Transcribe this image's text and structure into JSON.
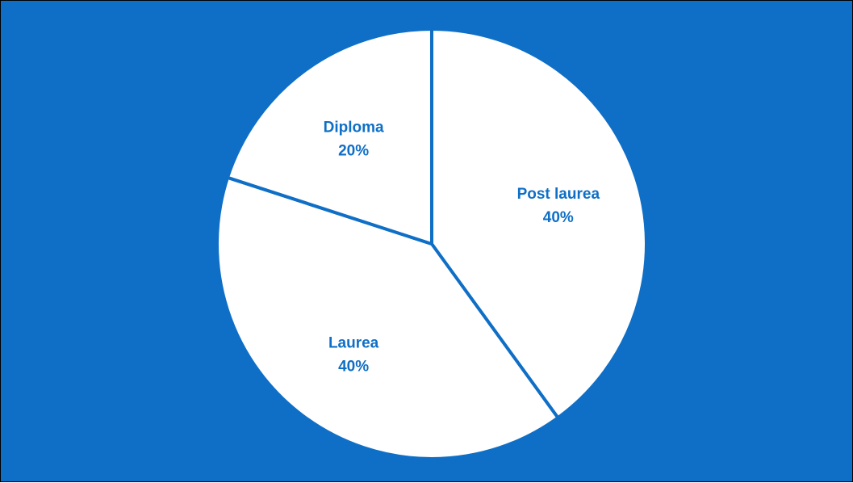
{
  "chart_data": {
    "type": "pie",
    "title": "",
    "start_angle_deg": 0,
    "direction": "clockwise",
    "slices": [
      {
        "label": "Post laurea",
        "value": 40,
        "value_label": "40%"
      },
      {
        "label": "Laurea",
        "value": 40,
        "value_label": "40%"
      },
      {
        "label": "Diploma",
        "value": 20,
        "value_label": "20%"
      }
    ]
  },
  "colors": {
    "background": "#0F6FC6",
    "slice_fill": "#FFFFFF",
    "slice_border": "#0F6FC6",
    "label_text": "#0F6FC6",
    "frame_border": "#000000"
  }
}
